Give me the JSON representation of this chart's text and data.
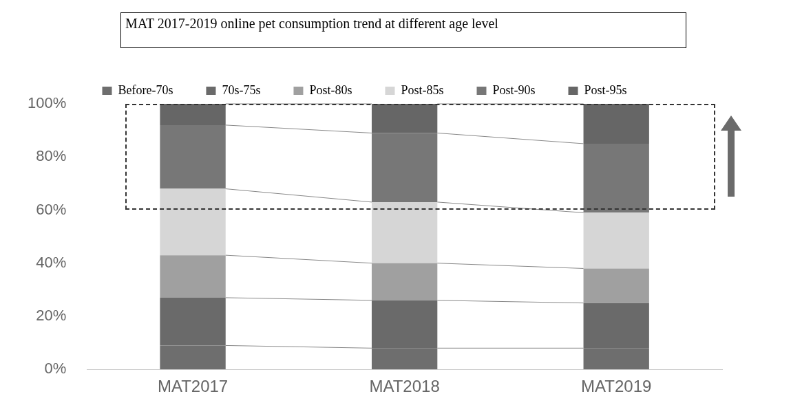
{
  "chart_data": {
    "type": "bar",
    "stacked": true,
    "title": "MAT 2017-2019 online pet consumption trend at different age level",
    "categories": [
      "MAT2017",
      "MAT2018",
      "MAT2019"
    ],
    "series": [
      {
        "name": "Before-70s",
        "color": "#6e6e6e",
        "values": [
          9,
          8,
          8
        ]
      },
      {
        "name": "70s-75s",
        "color": "#6a6a6a",
        "values": [
          18,
          18,
          17
        ]
      },
      {
        "name": "Post-80s",
        "color": "#a0a0a0",
        "values": [
          16,
          14,
          13
        ]
      },
      {
        "name": "Post-85s",
        "color": "#d6d6d6",
        "values": [
          25,
          23,
          21
        ]
      },
      {
        "name": "Post-90s",
        "color": "#777777",
        "values": [
          24,
          26,
          26
        ]
      },
      {
        "name": "Post-95s",
        "color": "#666666",
        "values": [
          8,
          11,
          15
        ]
      }
    ],
    "ylim": [
      0,
      100
    ],
    "yticks": [
      {
        "value": 0,
        "label": "0%"
      },
      {
        "value": 20,
        "label": "20%"
      },
      {
        "value": 40,
        "label": "40%"
      },
      {
        "value": 60,
        "label": "60%"
      },
      {
        "value": 80,
        "label": "80%"
      },
      {
        "value": 100,
        "label": "100%"
      }
    ],
    "grid": false,
    "legend": "top"
  }
}
